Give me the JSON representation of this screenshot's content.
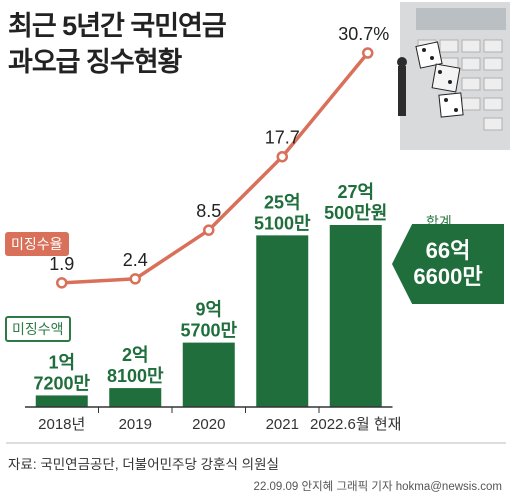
{
  "title_line1": "최근 5년간 국민연금",
  "title_line2": "과오급 징수현황",
  "tag_rate": "미징수율",
  "tag_amount": "미징수액",
  "total": {
    "label": "합계",
    "line1": "66억",
    "line2": "6600만"
  },
  "source": "자료: 국민연금공단, 더불어민주당 강훈식 의원실",
  "credit": "22.09.09 안지혜 그래픽 기자 hokma@newsis.com",
  "colors": {
    "bar": "#1f6e3c",
    "line": "#d9705a",
    "text": "#333333"
  },
  "chart_data": {
    "type": "bar",
    "categories": [
      "2018년",
      "2019",
      "2020",
      "2021",
      "2022.6월 현재"
    ],
    "series": [
      {
        "type": "bar",
        "values_krw_10k": [
          17200,
          28100,
          95700,
          255100,
          270500
        ],
        "labels": [
          [
            "1억",
            "7200만"
          ],
          [
            "2억",
            "8100만"
          ],
          [
            "9억",
            "5700만"
          ],
          [
            "25억",
            "5100만"
          ],
          [
            "27억",
            "500만원"
          ]
        ],
        "color": "#1f6e3c"
      },
      {
        "type": "line",
        "values": [
          1.9,
          2.4,
          8.5,
          17.7,
          30.7
        ],
        "labels": [
          "1.9",
          "2.4",
          "8.5",
          "17.7",
          "30.7%"
        ],
        "color": "#d9705a"
      }
    ]
  }
}
